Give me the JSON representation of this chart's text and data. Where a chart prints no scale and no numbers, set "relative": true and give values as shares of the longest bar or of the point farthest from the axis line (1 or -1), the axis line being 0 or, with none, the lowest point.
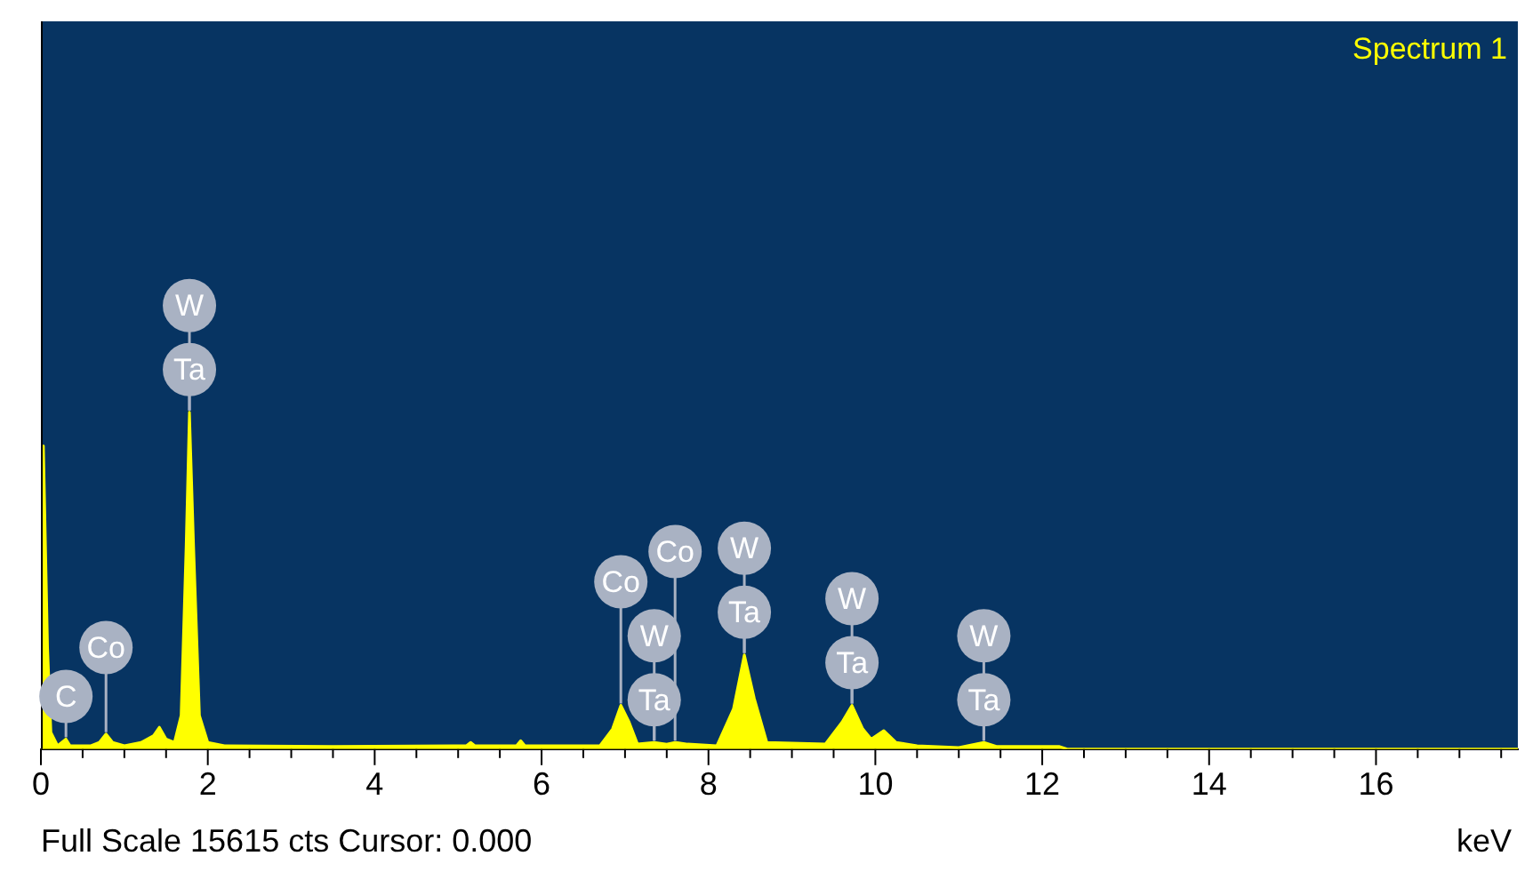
{
  "chart_data": {
    "type": "area",
    "title": "Spectrum 1",
    "xlabel": "keV",
    "relative": true,
    "grid": false,
    "legend": false,
    "xlim": [
      0,
      17.7
    ],
    "xticks": [
      0,
      {
        "value": 0.5,
        "label": null
      },
      {
        "value": 1,
        "label": null
      },
      {
        "value": 1.5,
        "label": null
      },
      2,
      {
        "value": 2.5,
        "label": null
      },
      {
        "value": 3,
        "label": null
      },
      {
        "value": 3.5,
        "label": null
      },
      4,
      {
        "value": 4.5,
        "label": null
      },
      {
        "value": 5,
        "label": null
      },
      {
        "value": 5.5,
        "label": null
      },
      6,
      {
        "value": 6.5,
        "label": null
      },
      {
        "value": 7,
        "label": null
      },
      {
        "value": 7.5,
        "label": null
      },
      8,
      {
        "value": 8.5,
        "label": null
      },
      {
        "value": 9,
        "label": null
      },
      {
        "value": 9.5,
        "label": null
      },
      10,
      {
        "value": 10.5,
        "label": null
      },
      {
        "value": 11,
        "label": null
      },
      {
        "value": 11.5,
        "label": null
      },
      12,
      {
        "value": 12.5,
        "label": null
      },
      {
        "value": 13,
        "label": null
      },
      {
        "value": 13.5,
        "label": null
      },
      14,
      {
        "value": 14.5,
        "label": null
      },
      {
        "value": 15,
        "label": null
      },
      {
        "value": 15.5,
        "label": null
      },
      16,
      {
        "value": 16.5,
        "label": null
      },
      {
        "value": 17,
        "label": null
      },
      {
        "value": 17.5,
        "label": null
      }
    ],
    "series": [
      {
        "color": "#ffff00",
        "x": [
          0,
          0.03,
          0.08,
          0.12,
          0.2,
          0.3,
          0.35,
          0.6,
          0.7,
          0.78,
          0.86,
          1.0,
          1.2,
          1.35,
          1.42,
          1.5,
          1.6,
          1.68,
          1.74,
          1.78,
          1.83,
          1.9,
          2.0,
          2.2,
          3.5,
          5.1,
          5.15,
          5.2,
          5.7,
          5.75,
          5.8,
          6.7,
          6.85,
          6.95,
          7.05,
          7.15,
          7.35,
          7.5,
          7.6,
          7.75,
          8.1,
          8.3,
          8.43,
          8.55,
          8.7,
          9.4,
          9.6,
          9.72,
          9.85,
          9.95,
          10.1,
          10.25,
          10.5,
          11.0,
          11.3,
          11.45,
          12.2,
          12.3,
          17.7
        ],
        "values": [
          0,
          0.9,
          0.3,
          0.05,
          0.01,
          0.03,
          0.01,
          0.01,
          0.02,
          0.045,
          0.02,
          0.01,
          0.02,
          0.04,
          0.065,
          0.03,
          0.02,
          0.1,
          0.6,
          1,
          0.6,
          0.1,
          0.02,
          0.01,
          0.008,
          0.01,
          0.02,
          0.01,
          0.01,
          0.025,
          0.01,
          0.01,
          0.06,
          0.13,
          0.08,
          0.015,
          0.02,
          0.015,
          0.02,
          0.015,
          0.01,
          0.12,
          0.28,
          0.15,
          0.02,
          0.015,
          0.08,
          0.13,
          0.06,
          0.03,
          0.055,
          0.02,
          0.01,
          0.005,
          0.02,
          0.008,
          0.008,
          0,
          0
        ]
      }
    ],
    "annotations": [
      {
        "text": "C",
        "x": 0.3,
        "y": 0.03
      },
      {
        "text": "Co",
        "x": 0.78,
        "y": 0.045
      },
      {
        "text": "Ta",
        "x": 1.78,
        "y": 1
      },
      {
        "text": "W",
        "x": 1.78,
        "y": 1
      },
      {
        "text": "Ta",
        "x": 7.35,
        "y": 0.02
      },
      {
        "text": "W",
        "x": 7.35,
        "y": 0.02
      },
      {
        "text": "Co",
        "x": 6.95,
        "y": 0.13
      },
      {
        "text": "Co",
        "x": 7.6,
        "y": 0.02
      },
      {
        "text": "Ta",
        "x": 8.43,
        "y": 0.28
      },
      {
        "text": "W",
        "x": 8.43,
        "y": 0.28
      },
      {
        "text": "Ta",
        "x": 9.72,
        "y": 0.13
      },
      {
        "text": "W",
        "x": 9.72,
        "y": 0.13
      },
      {
        "text": "Ta",
        "x": 11.3,
        "y": 0.02
      },
      {
        "text": "W",
        "x": 11.3,
        "y": 0.02
      },
      "Full Scale 15615 cts Cursor: 0.000"
    ]
  }
}
